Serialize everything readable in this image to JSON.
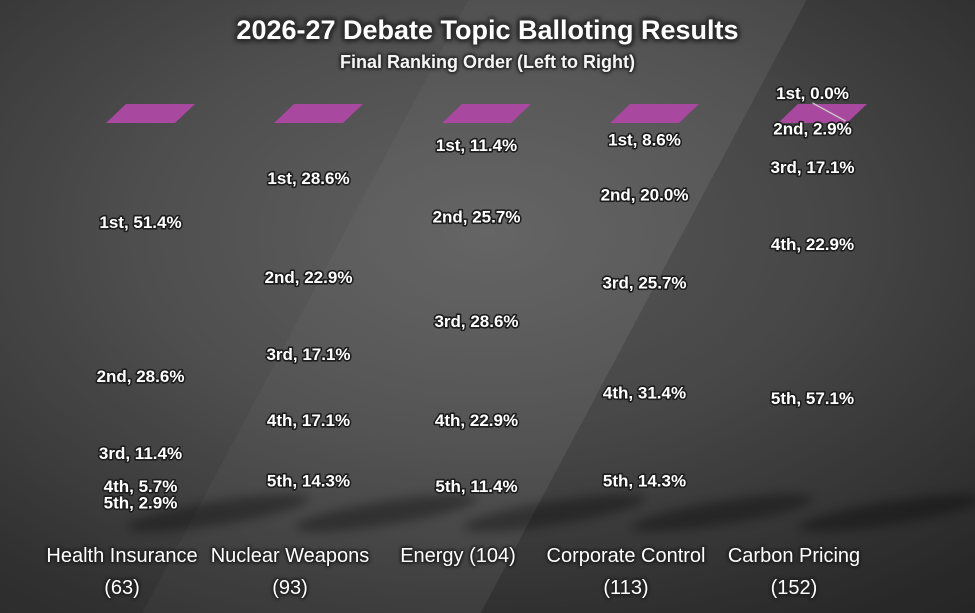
{
  "chart_data": {
    "type": "bar",
    "variant": "3d-stacked-100-percent",
    "title": "2026-27 Debate Topic Balloting Results",
    "subtitle": "Final Ranking Order (Left to Right)",
    "ylim": [
      0,
      100
    ],
    "legend": "none",
    "grid": false,
    "background": "dark-gray-vignette",
    "categories": [
      "Health Insurance (63)",
      "Nuclear Weapons (93)",
      "Energy (104)",
      "Corporate Control (113)",
      "Carbon Pricing (152)"
    ],
    "ranks": [
      "1st",
      "2nd",
      "3rd",
      "4th",
      "5th"
    ],
    "series": [
      {
        "name": "1st",
        "values": [
          51.4,
          28.6,
          11.4,
          8.6,
          0.0
        ]
      },
      {
        "name": "2nd",
        "values": [
          28.6,
          22.9,
          25.7,
          20.0,
          2.9
        ]
      },
      {
        "name": "3rd",
        "values": [
          11.4,
          17.1,
          28.6,
          25.7,
          17.1
        ]
      },
      {
        "name": "4th",
        "values": [
          5.7,
          17.1,
          22.9,
          31.4,
          22.9
        ]
      },
      {
        "name": "5th",
        "values": [
          2.9,
          14.3,
          11.4,
          14.3,
          57.1
        ]
      }
    ],
    "bars": [
      {
        "category": "Health Insurance (63)",
        "total_votes": 63,
        "segments": [
          {
            "rank": "1st",
            "pct": 51.4,
            "label": "1st, 51.4%"
          },
          {
            "rank": "2nd",
            "pct": 28.6,
            "label": "2nd, 28.6%"
          },
          {
            "rank": "3rd",
            "pct": 11.4,
            "label": "3rd, 11.4%"
          },
          {
            "rank": "4th",
            "pct": 5.7,
            "label": "4th, 5.7%"
          },
          {
            "rank": "5th",
            "pct": 2.9,
            "label": "5th, 2.9%"
          }
        ]
      },
      {
        "category": "Nuclear Weapons (93)",
        "total_votes": 93,
        "segments": [
          {
            "rank": "1st",
            "pct": 28.6,
            "label": "1st, 28.6%"
          },
          {
            "rank": "2nd",
            "pct": 22.9,
            "label": "2nd, 22.9%"
          },
          {
            "rank": "3rd",
            "pct": 17.1,
            "label": "3rd, 17.1%"
          },
          {
            "rank": "4th",
            "pct": 17.1,
            "label": "4th, 17.1%"
          },
          {
            "rank": "5th",
            "pct": 14.3,
            "label": "5th, 14.3%"
          }
        ]
      },
      {
        "category": "Energy (104)",
        "total_votes": 104,
        "segments": [
          {
            "rank": "1st",
            "pct": 11.4,
            "label": "1st, 11.4%"
          },
          {
            "rank": "2nd",
            "pct": 25.7,
            "label": "2nd, 25.7%"
          },
          {
            "rank": "3rd",
            "pct": 28.6,
            "label": "3rd, 28.6%"
          },
          {
            "rank": "4th",
            "pct": 22.9,
            "label": "4th, 22.9%"
          },
          {
            "rank": "5th",
            "pct": 11.4,
            "label": "5th, 11.4%"
          }
        ]
      },
      {
        "category": "Corporate Control (113)",
        "total_votes": 113,
        "segments": [
          {
            "rank": "1st",
            "pct": 8.6,
            "label": "1st, 8.6%"
          },
          {
            "rank": "2nd",
            "pct": 20.0,
            "label": "2nd, 20.0%"
          },
          {
            "rank": "3rd",
            "pct": 25.7,
            "label": "3rd, 25.7%"
          },
          {
            "rank": "4th",
            "pct": 31.4,
            "label": "4th, 31.4%"
          },
          {
            "rank": "5th",
            "pct": 14.3,
            "label": "5th, 14.3%"
          }
        ]
      },
      {
        "category": "Carbon Pricing (152)",
        "total_votes": 152,
        "segments": [
          {
            "rank": "1st",
            "pct": 0.0,
            "label": "1st, 0.0%"
          },
          {
            "rank": "2nd",
            "pct": 2.9,
            "label": "2nd, 2.9%"
          },
          {
            "rank": "3rd",
            "pct": 17.1,
            "label": "3rd, 17.1%"
          },
          {
            "rank": "4th",
            "pct": 22.9,
            "label": "4th, 22.9%"
          },
          {
            "rank": "5th",
            "pct": 57.1,
            "label": "5th, 57.1%"
          }
        ]
      }
    ],
    "palette": {
      "1st": {
        "front_top": "#b656ad",
        "front_bottom": "#97198f",
        "side_top": "#73156c",
        "side_bottom": "#4c0b47",
        "top_face": "#a8489f"
      },
      "2nd": {
        "front_top": "#4ab2e8",
        "front_bottom": "#1f9ade",
        "side_top": "#2176a4",
        "side_bottom": "#0b6793",
        "top_face": "#5cbaec"
      },
      "3rd": {
        "front_top": "#3c8640",
        "front_bottom": "#1c5a21",
        "side_top": "#1f5223",
        "side_bottom": "#133c16",
        "top_face": "#4a9350"
      },
      "4th": {
        "front_top": "#f28e55",
        "front_bottom": "#e1661a",
        "side_top": "#a85318",
        "side_bottom": "#8a4210",
        "top_face": "#f49a66"
      },
      "5th": {
        "front_top": "#3e83ad",
        "front_bottom": "#246087",
        "side_top": "#1d516f",
        "side_bottom": "#113a52",
        "top_face": "#4c8fb8"
      }
    }
  }
}
